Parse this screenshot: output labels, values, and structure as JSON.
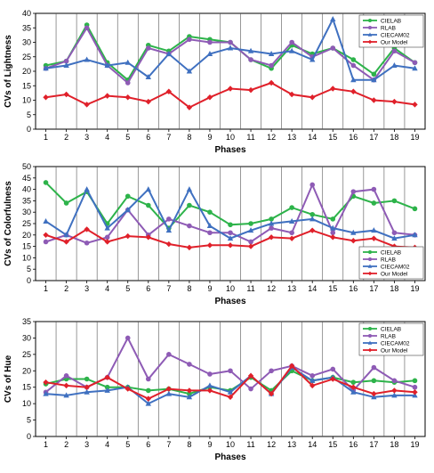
{
  "colors": {
    "CIELAB": "#2db34a",
    "RLAB": "#8e5bb5",
    "CIECAM02": "#3f70c0",
    "Our Model": "#e0202a"
  },
  "chart_data": [
    {
      "type": "line",
      "title": "",
      "xlabel": "Phases",
      "ylabel": "CVs of Lightness",
      "x": [
        1,
        2,
        3,
        4,
        5,
        6,
        7,
        8,
        9,
        10,
        11,
        12,
        13,
        14,
        15,
        16,
        17,
        18,
        19
      ],
      "ylim": [
        0,
        40
      ],
      "yticks": [
        0,
        5,
        10,
        15,
        20,
        25,
        30,
        35,
        40
      ],
      "grid": "vertical",
      "legend": "top-right",
      "series": [
        {
          "name": "CIELAB",
          "values": [
            22,
            23.5,
            36,
            23,
            17,
            29,
            27,
            32,
            31,
            30,
            24,
            21,
            29,
            26,
            28,
            24,
            19,
            28,
            23
          ]
        },
        {
          "name": "RLAB",
          "values": [
            21,
            23.5,
            35,
            22,
            16,
            28,
            26,
            31,
            30,
            30,
            24,
            22,
            30,
            25,
            28,
            22,
            17,
            27,
            23
          ]
        },
        {
          "name": "CIECAM02",
          "values": [
            21,
            22,
            24,
            22,
            23,
            18,
            26,
            20,
            26,
            28,
            27,
            26,
            27,
            24,
            38,
            17,
            17,
            22,
            21
          ]
        },
        {
          "name": "Our Model",
          "values": [
            11,
            12,
            8.5,
            11.5,
            11,
            9.5,
            13,
            7.5,
            11,
            14,
            13.5,
            16,
            12,
            11,
            14,
            13,
            10,
            9.5,
            8.5
          ]
        }
      ]
    },
    {
      "type": "line",
      "title": "",
      "xlabel": "Phases",
      "ylabel": "CVs of Colorfulness",
      "x": [
        1,
        2,
        3,
        4,
        5,
        6,
        7,
        8,
        9,
        10,
        11,
        12,
        13,
        14,
        15,
        16,
        17,
        18,
        19
      ],
      "ylim": [
        0,
        50
      ],
      "yticks": [
        0,
        5,
        10,
        15,
        20,
        25,
        30,
        35,
        40,
        45,
        50
      ],
      "grid": "vertical",
      "legend": "bottom-right",
      "series": [
        {
          "name": "CIELAB",
          "values": [
            43,
            34,
            39,
            25,
            37,
            33,
            23,
            33,
            30,
            24.5,
            25,
            27,
            32,
            29,
            27,
            37,
            34,
            35,
            31.5
          ]
        },
        {
          "name": "RLAB",
          "values": [
            17,
            20,
            16.5,
            19,
            31,
            20,
            27,
            24,
            21,
            21,
            17,
            23,
            21,
            42,
            21,
            39,
            40,
            21,
            20
          ]
        },
        {
          "name": "CIECAM02",
          "values": [
            26,
            20,
            40,
            23,
            31,
            40,
            22,
            40,
            24,
            18.5,
            22,
            25,
            26,
            27,
            23,
            21,
            22,
            18.5,
            20
          ]
        },
        {
          "name": "Our Model",
          "values": [
            20,
            17,
            22.5,
            17,
            19.5,
            19,
            16,
            14.5,
            15.5,
            15.5,
            15,
            19,
            18.5,
            22,
            19,
            17.5,
            18.5,
            15,
            14.5
          ]
        }
      ]
    },
    {
      "type": "line",
      "title": "",
      "xlabel": "Phases",
      "ylabel": "CVs of Hue",
      "x": [
        1,
        2,
        3,
        4,
        5,
        6,
        7,
        8,
        9,
        10,
        11,
        12,
        13,
        14,
        15,
        16,
        17,
        18,
        19
      ],
      "ylim": [
        0,
        35
      ],
      "yticks": [
        0,
        5,
        10,
        15,
        20,
        25,
        30,
        35
      ],
      "grid": "vertical",
      "legend": "top-right",
      "series": [
        {
          "name": "CIELAB",
          "values": [
            16,
            17.5,
            17.5,
            15,
            15,
            14,
            14.5,
            13,
            15,
            14,
            18,
            14,
            20,
            17,
            18,
            16.5,
            17,
            16.5,
            17
          ]
        },
        {
          "name": "RLAB",
          "values": [
            13.5,
            18.5,
            15,
            18,
            30,
            17.5,
            25,
            22,
            19,
            20,
            14.5,
            20,
            21.5,
            18.5,
            20.5,
            14,
            21,
            17,
            15
          ]
        },
        {
          "name": "CIECAM02",
          "values": [
            13,
            12.5,
            13.5,
            14,
            15,
            10,
            13,
            12,
            15.5,
            13.5,
            18.5,
            13,
            21,
            17,
            18,
            13.5,
            12,
            12.5,
            12.5
          ]
        },
        {
          "name": "Our Model",
          "values": [
            16.5,
            15.5,
            15,
            18,
            14.5,
            11.5,
            14.5,
            14,
            14,
            12,
            18.5,
            13,
            21.5,
            15.5,
            17.5,
            15,
            13,
            14,
            13.5
          ]
        }
      ]
    }
  ]
}
